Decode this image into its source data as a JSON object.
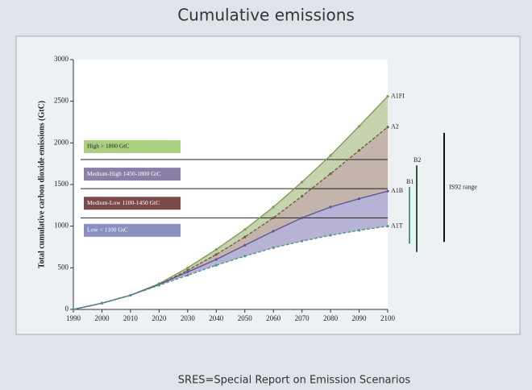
{
  "chart_data": {
    "type": "line",
    "title": "Cumulative emissions",
    "ylabel": "Total cumulative carbon dioxide emissions (GtC)",
    "footer": "SRES=Special Report on Emission Scenarios",
    "x": [
      1990,
      2000,
      2010,
      2020,
      2030,
      2040,
      2050,
      2060,
      2070,
      2080,
      2090,
      2100
    ],
    "xlim": [
      1990,
      2100
    ],
    "xticks": [
      1990,
      2000,
      2010,
      2020,
      2030,
      2040,
      2050,
      2060,
      2070,
      2080,
      2090,
      2100
    ],
    "ylim": [
      0,
      3000
    ],
    "yticks": [
      0,
      500,
      1000,
      1500,
      2000,
      2500,
      3000
    ],
    "series": [
      {
        "name": "A1FI",
        "color": "#7f9e4e",
        "values": [
          0,
          75,
          170,
          310,
          500,
          720,
          960,
          1230,
          1530,
          1850,
          2200,
          2560
        ]
      },
      {
        "name": "A2",
        "color": "#7a5c44",
        "values": [
          0,
          75,
          170,
          300,
          470,
          660,
          870,
          1100,
          1360,
          1630,
          1910,
          2190
        ]
      },
      {
        "name": "A1B",
        "color": "#5e56a0",
        "values": [
          0,
          75,
          170,
          300,
          450,
          600,
          770,
          940,
          1100,
          1230,
          1330,
          1420
        ]
      },
      {
        "name": "A1T",
        "color": "#4f9a88",
        "values": [
          0,
          75,
          170,
          290,
          410,
          530,
          640,
          740,
          820,
          890,
          950,
          1000
        ]
      }
    ],
    "thresholds": [
      1800,
      1450,
      1100
    ],
    "ranges": [
      {
        "label": "High > 1800 GtC",
        "color": "#a9cf7f"
      },
      {
        "label": "Medium-High 1450-1800 GtC",
        "color": "#8a7fa8"
      },
      {
        "label": "Medium-Low 1100-1450 GtC",
        "color": "#7a4a4a"
      },
      {
        "label": "Low < 1100 GtC",
        "color": "#8a8fc0"
      }
    ],
    "range_bars": [
      {
        "label": "B2",
        "min": 690,
        "max": 1730,
        "color": "#2a5a3a"
      },
      {
        "label": "B1",
        "min": 790,
        "max": 1470,
        "color": "#4aa07a"
      },
      {
        "label": "IS92 range",
        "min": 810,
        "max": 2120,
        "color": "#111111"
      }
    ]
  }
}
